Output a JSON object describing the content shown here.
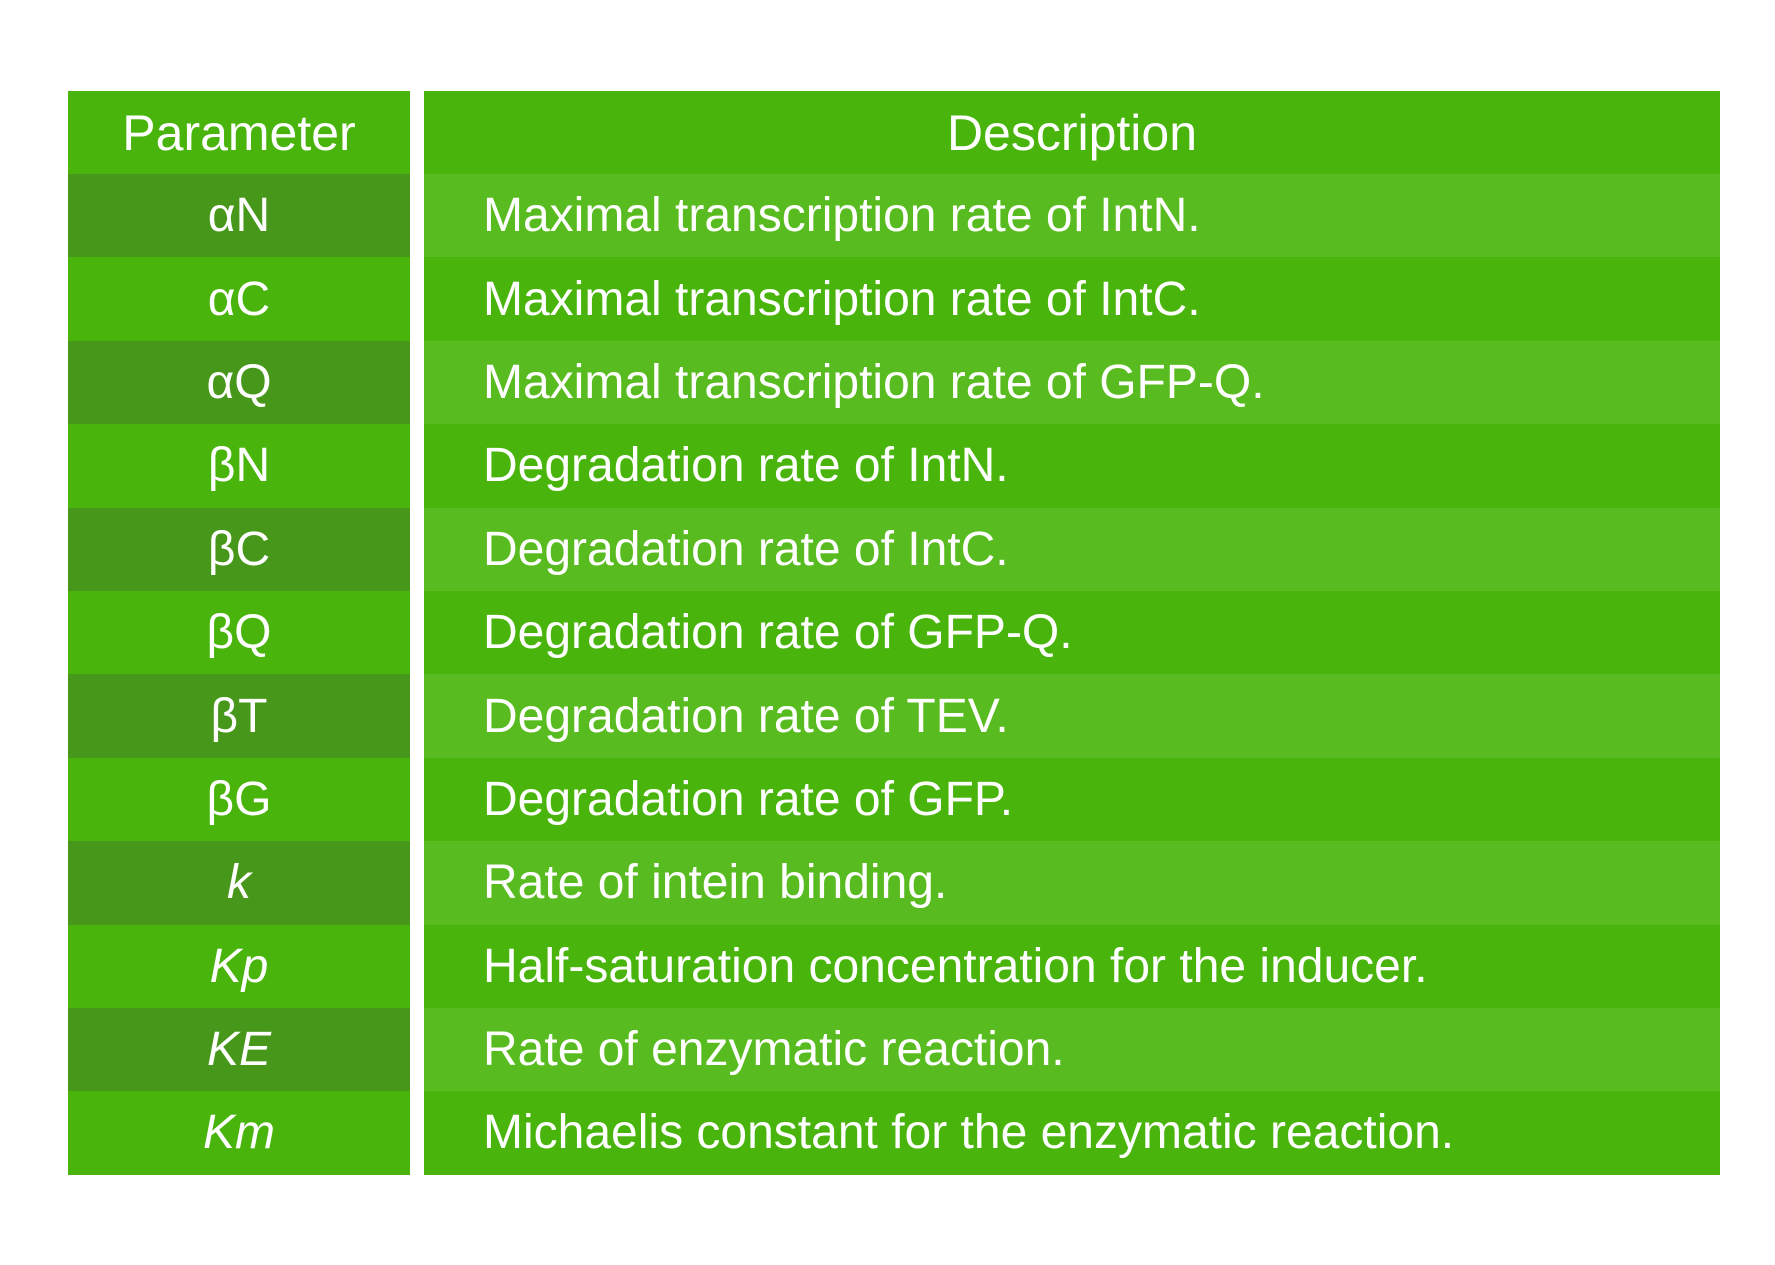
{
  "table": {
    "headers": {
      "parameter": "Parameter",
      "description": "Description"
    },
    "rows": [
      {
        "parameter": "αN",
        "description": "Maximal transcription rate of IntN."
      },
      {
        "parameter": "αC",
        "description": "Maximal transcription rate of IntC."
      },
      {
        "parameter": "αQ",
        "description": "Maximal transcription rate of GFP-Q."
      },
      {
        "parameter": "βN",
        "description": "Degradation rate of IntN."
      },
      {
        "parameter": "βC",
        "description": "Degradation rate of IntC."
      },
      {
        "parameter": "βQ",
        "description": "Degradation rate of GFP-Q."
      },
      {
        "parameter": "βT",
        "description": "Degradation rate of TEV."
      },
      {
        "parameter": "βG",
        "description": "Degradation rate of GFP."
      },
      {
        "parameter": "k",
        "description": "Rate of intein binding."
      },
      {
        "parameter": "Kp",
        "description": "Half-saturation concentration for the inducer."
      },
      {
        "parameter": "KE",
        "description": "Rate of enzymatic reaction."
      },
      {
        "parameter": "Km",
        "description": "Michaelis constant for the enzymatic reaction."
      }
    ]
  },
  "colors": {
    "header_bg": "#48b40c",
    "param_dark": "#47971b",
    "desc_light": "#58bb1f",
    "text": "#ffffff"
  }
}
